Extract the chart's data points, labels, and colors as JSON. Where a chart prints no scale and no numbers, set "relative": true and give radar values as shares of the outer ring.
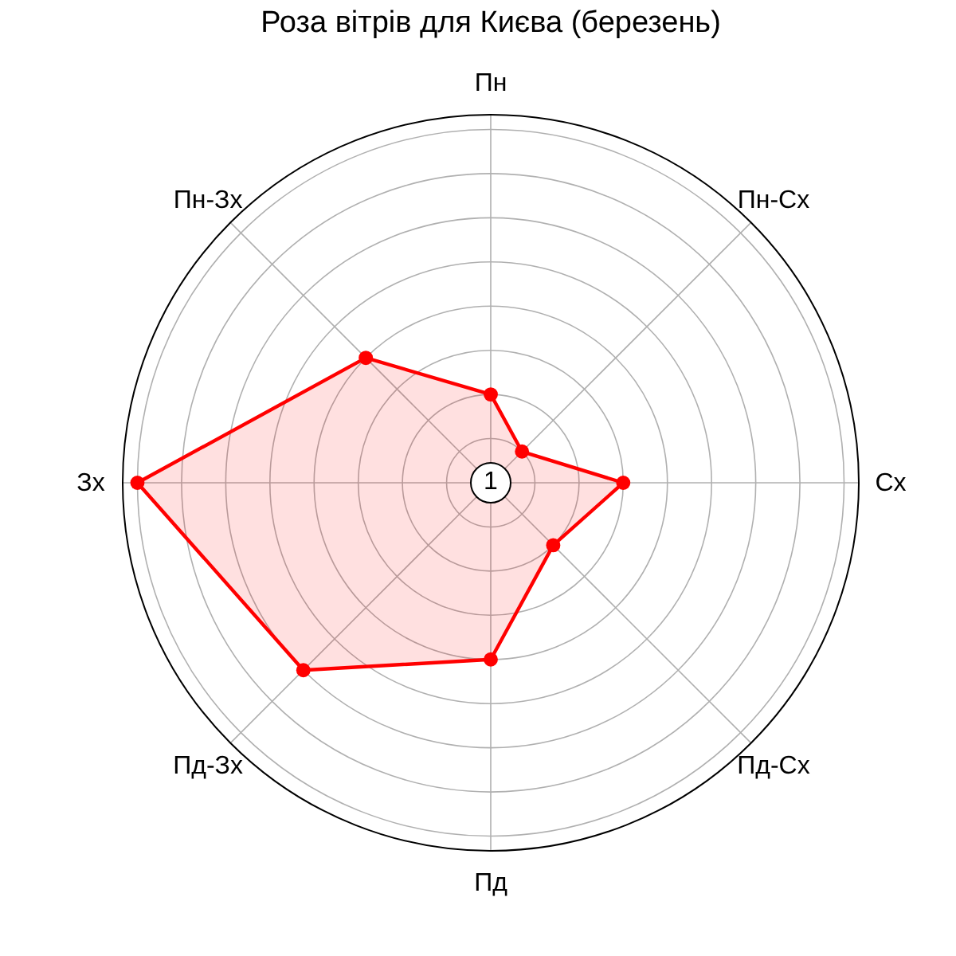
{
  "chart_data": {
    "type": "radar",
    "title": "Роза вітрів для Києва (березень)",
    "categories": [
      "Пн",
      "Пн-Сх",
      "Сх",
      "Пд-Сх",
      "Пд",
      "Пд-Зх",
      "Зх",
      "Пн-Зх"
    ],
    "relative": true,
    "series": [
      {
        "color": "#ff0000",
        "values": [
          0.24,
          0.12,
          0.36,
          0.24,
          0.48,
          0.72,
          0.96,
          0.48
        ]
      }
    ],
    "grid": true,
    "marker": "circle",
    "annotations": [
      "1"
    ]
  }
}
